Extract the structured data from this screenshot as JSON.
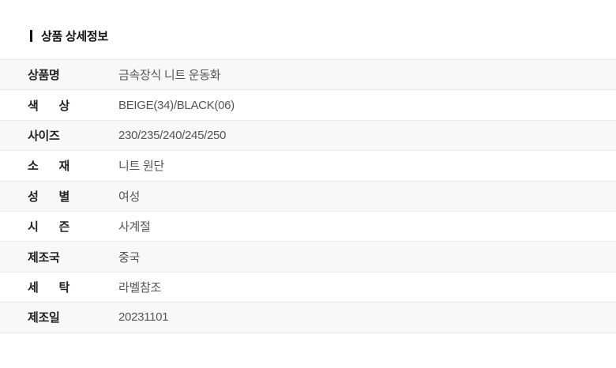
{
  "header": {
    "title": "상품 상세정보"
  },
  "table": {
    "rows": [
      {
        "label": "상품명",
        "value": "금속장식 니트 운동화"
      },
      {
        "label": "색 상",
        "value": "BEIGE(34)/BLACK(06)"
      },
      {
        "label": "사이즈",
        "value": "230/235/240/245/250"
      },
      {
        "label": "소 재",
        "value": "니트 원단"
      },
      {
        "label": "성 별",
        "value": "여성"
      },
      {
        "label": "시 즌",
        "value": "사계절"
      },
      {
        "label": "제조국",
        "value": "중국"
      },
      {
        "label": "세 탁",
        "value": "라벨참조"
      },
      {
        "label": "제조일",
        "value": "20231101"
      }
    ],
    "colors": {
      "stripe_bg": "#f8f8f8",
      "border": "#e9e9e9",
      "label_text": "#222222",
      "value_text": "#555555",
      "title_text": "#111111"
    }
  }
}
